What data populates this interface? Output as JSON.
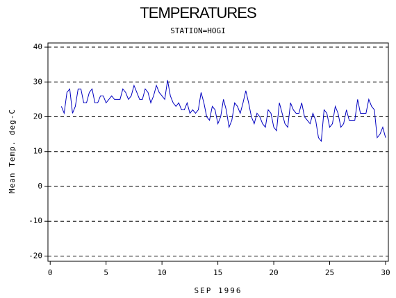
{
  "chart_data": {
    "type": "line",
    "title": "TEMPERATURES",
    "subtitle": "STATION=HOGI",
    "x_label": "SEP 1996",
    "y_label": "Mean Temp. deg-C",
    "color": "#0000c0",
    "x": [
      1,
      1.25,
      1.5,
      1.75,
      2,
      2.25,
      2.5,
      2.75,
      3,
      3.25,
      3.5,
      3.75,
      4,
      4.25,
      4.5,
      4.75,
      5,
      5.25,
      5.5,
      5.75,
      6,
      6.25,
      6.5,
      6.75,
      7,
      7.25,
      7.5,
      7.75,
      8,
      8.25,
      8.5,
      8.75,
      9,
      9.25,
      9.5,
      9.75,
      10,
      10.25,
      10.5,
      10.75,
      11,
      11.25,
      11.5,
      11.75,
      12,
      12.25,
      12.5,
      12.75,
      13,
      13.25,
      13.5,
      13.75,
      14,
      14.25,
      14.5,
      14.75,
      15,
      15.25,
      15.5,
      15.75,
      16,
      16.25,
      16.5,
      16.75,
      17,
      17.25,
      17.5,
      17.75,
      18,
      18.25,
      18.5,
      18.75,
      19,
      19.25,
      19.5,
      19.75,
      20,
      20.25,
      20.5,
      20.75,
      21,
      21.25,
      21.5,
      21.75,
      22,
      22.25,
      22.5,
      22.75,
      23,
      23.25,
      23.5,
      23.75,
      24,
      24.25,
      24.5,
      24.75,
      25,
      25.25,
      25.5,
      25.75,
      26,
      26.25,
      26.5,
      26.75,
      27,
      27.25,
      27.5,
      27.75,
      28,
      28.25,
      28.5,
      28.75,
      29,
      29.25,
      29.5,
      29.75,
      30
    ],
    "values": [
      23,
      21,
      27,
      28,
      21,
      23,
      28,
      28,
      24,
      24,
      27,
      28,
      24,
      24,
      26,
      26,
      24,
      25,
      26,
      25,
      25,
      25,
      28,
      27,
      25,
      26,
      29,
      27,
      25,
      25,
      28,
      27,
      24,
      26,
      29,
      27,
      26,
      25,
      30.5,
      26,
      24,
      23,
      24,
      22,
      22,
      24,
      21,
      22,
      21,
      22,
      27,
      24,
      20,
      19,
      23,
      22,
      18,
      20,
      25,
      22,
      17,
      19,
      24,
      23,
      21,
      24,
      27.5,
      24,
      20,
      18,
      21,
      20,
      18,
      17,
      22,
      21,
      17,
      16,
      24,
      21,
      18,
      17,
      24,
      22,
      21,
      21,
      24,
      20,
      19,
      18,
      21,
      19,
      14,
      13,
      22,
      21,
      17,
      18,
      23,
      21,
      17,
      18,
      22,
      19,
      19,
      19,
      25,
      21,
      21,
      21,
      25,
      23,
      22,
      14,
      15,
      17,
      14
    ],
    "xlim": [
      -0.2,
      30.25
    ],
    "ylim": [
      -21.5,
      41.2
    ],
    "xticks": [
      0,
      5,
      10,
      15,
      20,
      25,
      30
    ],
    "yticks": [
      -20,
      -10,
      0,
      10,
      20,
      30,
      40
    ],
    "grid": true
  }
}
